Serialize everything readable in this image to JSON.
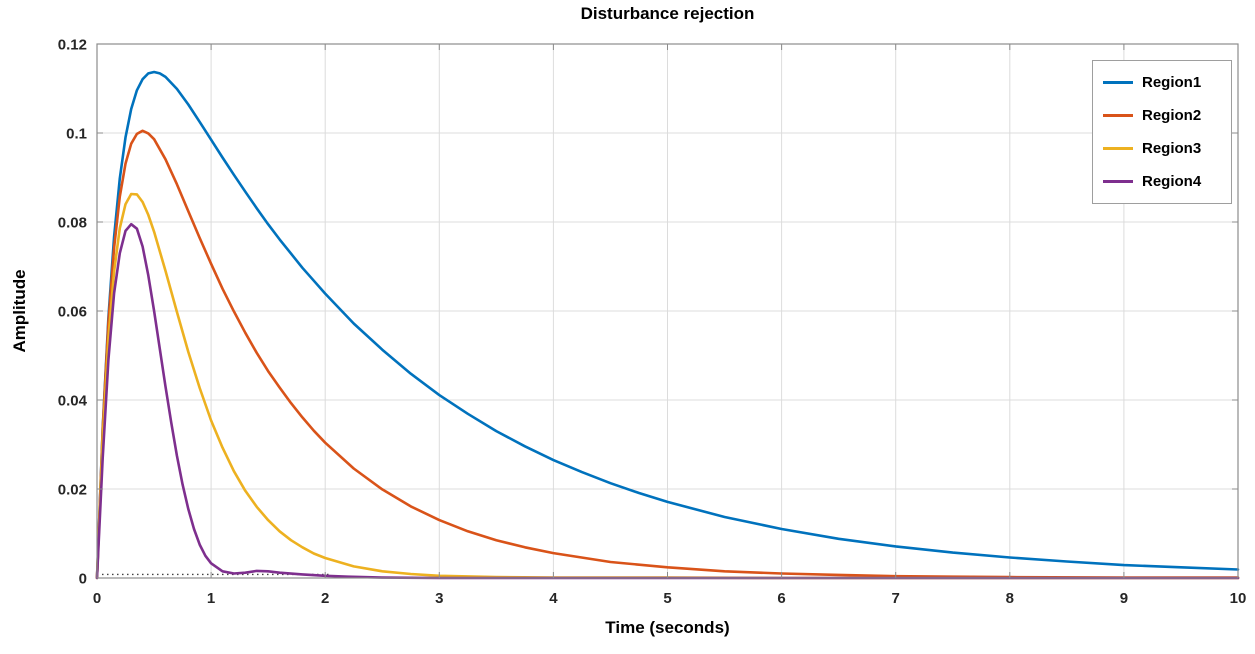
{
  "chart_data": {
    "type": "line",
    "title": "Disturbance rejection",
    "xlabel": "Time (seconds)",
    "ylabel": "Amplitude",
    "xlim": [
      0,
      10
    ],
    "ylim": [
      0,
      0.12
    ],
    "xtick_values": [
      0,
      1,
      2,
      3,
      4,
      5,
      6,
      7,
      8,
      9,
      10
    ],
    "xtick_labels": [
      "0",
      "1",
      "2",
      "3",
      "4",
      "5",
      "6",
      "7",
      "8",
      "9",
      "10"
    ],
    "ytick_values": [
      0,
      0.02,
      0.04,
      0.06,
      0.08,
      0.1,
      0.12
    ],
    "ytick_labels": [
      "0",
      "0.02",
      "0.04",
      "0.06",
      "0.08",
      "0.1",
      "0.12"
    ],
    "grid": true,
    "legend_position": "top-right",
    "axis_color": "#8c8c8c",
    "grid_color": "#dcdcdc",
    "tick_label_color": "#262626",
    "series": [
      {
        "name": "Region1",
        "color": "#0072BD",
        "points": [
          [
            0,
            0
          ],
          [
            0.05,
            0.0337
          ],
          [
            0.1,
            0.0585
          ],
          [
            0.15,
            0.0767
          ],
          [
            0.2,
            0.0898
          ],
          [
            0.25,
            0.099
          ],
          [
            0.3,
            0.1054
          ],
          [
            0.35,
            0.1096
          ],
          [
            0.4,
            0.1121
          ],
          [
            0.45,
            0.1134
          ],
          [
            0.5,
            0.1137
          ],
          [
            0.55,
            0.1134
          ],
          [
            0.6,
            0.1126
          ],
          [
            0.7,
            0.1099
          ],
          [
            0.8,
            0.1064
          ],
          [
            0.9,
            0.1025
          ],
          [
            1,
            0.0985
          ],
          [
            1.1,
            0.0945
          ],
          [
            1.2,
            0.0906
          ],
          [
            1.3,
            0.0868
          ],
          [
            1.4,
            0.0831
          ],
          [
            1.5,
            0.0795
          ],
          [
            1.6,
            0.0761
          ],
          [
            1.7,
            0.0729
          ],
          [
            1.8,
            0.0697
          ],
          [
            1.9,
            0.0668
          ],
          [
            2,
            0.0639
          ],
          [
            2.25,
            0.0572
          ],
          [
            2.5,
            0.0513
          ],
          [
            2.75,
            0.0459
          ],
          [
            3,
            0.0411
          ],
          [
            3.25,
            0.0369
          ],
          [
            3.5,
            0.033
          ],
          [
            3.75,
            0.0296
          ],
          [
            4,
            0.0265
          ],
          [
            4.25,
            0.0238
          ],
          [
            4.5,
            0.0213
          ],
          [
            4.75,
            0.0191
          ],
          [
            5,
            0.0171
          ],
          [
            5.5,
            0.0137
          ],
          [
            6,
            0.011
          ],
          [
            6.5,
            0.0088
          ],
          [
            7,
            0.0071
          ],
          [
            7.5,
            0.0057
          ],
          [
            8,
            0.0046
          ],
          [
            8.5,
            0.0037
          ],
          [
            9,
            0.0029
          ],
          [
            9.5,
            0.0024
          ],
          [
            10,
            0.0019
          ]
        ]
      },
      {
        "name": "Region2",
        "color": "#D95319",
        "points": [
          [
            0,
            0
          ],
          [
            0.05,
            0.0334
          ],
          [
            0.1,
            0.0574
          ],
          [
            0.15,
            0.0742
          ],
          [
            0.2,
            0.0857
          ],
          [
            0.25,
            0.0931
          ],
          [
            0.3,
            0.0976
          ],
          [
            0.35,
            0.0998
          ],
          [
            0.4,
            0.1005
          ],
          [
            0.45,
            0.0999
          ],
          [
            0.5,
            0.0986
          ],
          [
            0.6,
            0.0941
          ],
          [
            0.7,
            0.0885
          ],
          [
            0.8,
            0.0824
          ],
          [
            0.9,
            0.0764
          ],
          [
            1,
            0.0706
          ],
          [
            1.1,
            0.065
          ],
          [
            1.2,
            0.0599
          ],
          [
            1.3,
            0.0551
          ],
          [
            1.4,
            0.0506
          ],
          [
            1.5,
            0.0465
          ],
          [
            1.6,
            0.0428
          ],
          [
            1.7,
            0.0393
          ],
          [
            1.8,
            0.0361
          ],
          [
            1.9,
            0.0331
          ],
          [
            2,
            0.0304
          ],
          [
            2.25,
            0.0246
          ],
          [
            2.5,
            0.0199
          ],
          [
            2.75,
            0.0161
          ],
          [
            3,
            0.013
          ],
          [
            3.25,
            0.0105
          ],
          [
            3.5,
            0.0085
          ],
          [
            3.75,
            0.0069
          ],
          [
            4,
            0.0056
          ],
          [
            4.5,
            0.0036
          ],
          [
            5,
            0.0024
          ],
          [
            5.5,
            0.0015
          ],
          [
            6,
            0.001
          ],
          [
            6.5,
            0.0007
          ],
          [
            7,
            0.0004
          ],
          [
            7.5,
            0.0003
          ],
          [
            8,
            0.0002
          ],
          [
            9,
            0.0001
          ],
          [
            10,
            0.0001
          ]
        ]
      },
      {
        "name": "Region3",
        "color": "#EDB120",
        "points": [
          [
            0,
            0
          ],
          [
            0.05,
            0.0315
          ],
          [
            0.1,
            0.0538
          ],
          [
            0.15,
            0.0689
          ],
          [
            0.2,
            0.0786
          ],
          [
            0.25,
            0.084
          ],
          [
            0.3,
            0.0863
          ],
          [
            0.35,
            0.0862
          ],
          [
            0.4,
            0.0845
          ],
          [
            0.45,
            0.0816
          ],
          [
            0.5,
            0.0778
          ],
          [
            0.6,
            0.069
          ],
          [
            0.7,
            0.0598
          ],
          [
            0.8,
            0.0508
          ],
          [
            0.9,
            0.0427
          ],
          [
            1,
            0.0354
          ],
          [
            1.1,
            0.0293
          ],
          [
            1.2,
            0.024
          ],
          [
            1.3,
            0.0196
          ],
          [
            1.4,
            0.016
          ],
          [
            1.5,
            0.013
          ],
          [
            1.6,
            0.0105
          ],
          [
            1.7,
            0.0085
          ],
          [
            1.8,
            0.0069
          ],
          [
            1.9,
            0.0055
          ],
          [
            2,
            0.0045
          ],
          [
            2.25,
            0.0026
          ],
          [
            2.5,
            0.0015
          ],
          [
            2.75,
            0.0009
          ],
          [
            3,
            0.0005
          ],
          [
            3.5,
            0.0002
          ],
          [
            4,
            0.0001
          ],
          [
            5,
            0.0001
          ],
          [
            6,
            0
          ],
          [
            7,
            0
          ],
          [
            8,
            0
          ],
          [
            9,
            0
          ],
          [
            10,
            0
          ]
        ]
      },
      {
        "name": "Region4",
        "color": "#7E2F8E",
        "points": [
          [
            0,
            0
          ],
          [
            0.05,
            0.027
          ],
          [
            0.1,
            0.049
          ],
          [
            0.15,
            0.064
          ],
          [
            0.2,
            0.073
          ],
          [
            0.25,
            0.078
          ],
          [
            0.3,
            0.0795
          ],
          [
            0.35,
            0.0785
          ],
          [
            0.4,
            0.0745
          ],
          [
            0.45,
            0.068
          ],
          [
            0.5,
            0.06
          ],
          [
            0.55,
            0.0515
          ],
          [
            0.6,
            0.043
          ],
          [
            0.65,
            0.035
          ],
          [
            0.7,
            0.0275
          ],
          [
            0.75,
            0.021
          ],
          [
            0.8,
            0.0155
          ],
          [
            0.85,
            0.011
          ],
          [
            0.9,
            0.0075
          ],
          [
            0.95,
            0.005
          ],
          [
            1,
            0.0033
          ],
          [
            1.1,
            0.0015
          ],
          [
            1.2,
            0.001
          ],
          [
            1.3,
            0.0012
          ],
          [
            1.4,
            0.0016
          ],
          [
            1.5,
            0.0015
          ],
          [
            1.6,
            0.0012
          ],
          [
            1.8,
            0.0008
          ],
          [
            2,
            0.0005
          ],
          [
            2.2,
            0.0003
          ],
          [
            2.5,
            0.0001
          ],
          [
            3,
            0
          ],
          [
            4,
            0
          ],
          [
            5,
            0
          ],
          [
            6,
            0
          ],
          [
            7,
            0
          ],
          [
            8,
            0
          ],
          [
            9,
            0
          ],
          [
            10,
            0
          ]
        ]
      }
    ],
    "annotations": [
      {
        "name": "zero-reference-dotted-line",
        "style": "dotted",
        "color": "#404040",
        "y": 0.0008,
        "x_start": 0,
        "x_end": 2.05
      }
    ]
  }
}
